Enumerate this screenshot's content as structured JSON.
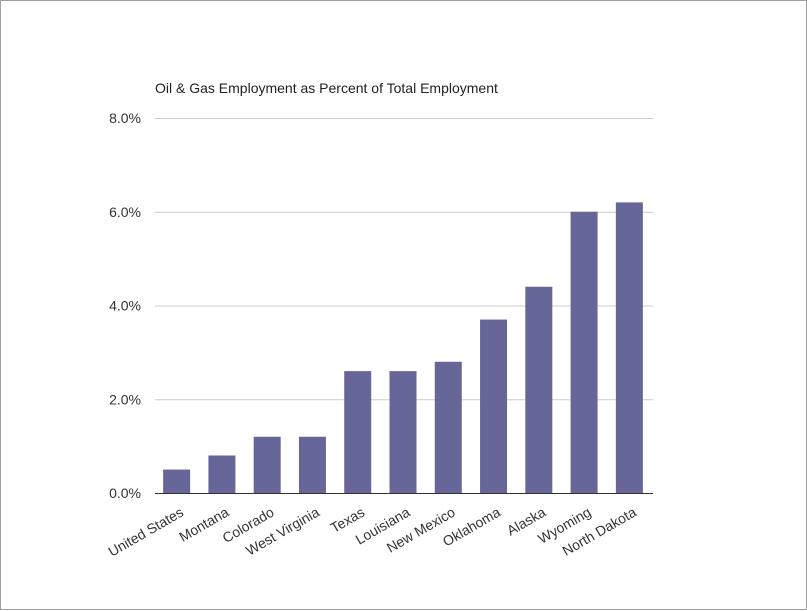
{
  "chart_data": {
    "type": "bar",
    "title": "Oil & Gas Employment as Percent of Total Employment",
    "xlabel": "",
    "ylabel": "",
    "categories": [
      "United States",
      "Montana",
      "Colorado",
      "West Virginia",
      "Texas",
      "Louisiana",
      "New Mexico",
      "Oklahoma",
      "Alaska",
      "Wyoming",
      "North Dakota"
    ],
    "values": [
      0.5,
      0.8,
      1.2,
      1.2,
      2.6,
      2.6,
      2.8,
      3.7,
      4.4,
      6.0,
      6.2
    ],
    "ylim": [
      0,
      8
    ],
    "yticks": [
      0,
      2,
      4,
      6,
      8
    ],
    "ytick_labels": [
      "0.0%",
      "2.0%",
      "4.0%",
      "6.0%",
      "8.0%"
    ],
    "grid": true,
    "legend": "none",
    "bar_color": "#666699"
  }
}
